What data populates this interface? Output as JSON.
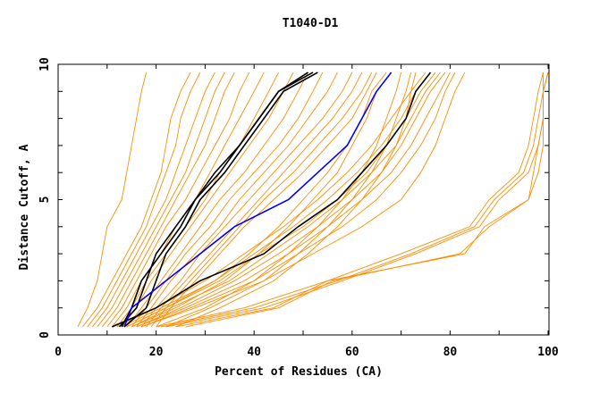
{
  "chart_data": {
    "type": "line",
    "title": "T1040-D1",
    "xlabel": "Percent of Residues (CA)",
    "ylabel": "Distance Cutoff, A",
    "xlim": [
      0,
      102
    ],
    "ylim": [
      0,
      10
    ],
    "x_ticks": [
      0,
      20,
      40,
      60,
      80,
      100
    ],
    "y_ticks": [
      0,
      5,
      10
    ],
    "grid": false,
    "legend": "none",
    "colors": {
      "orange": "#ff8c00",
      "black": "#000000",
      "blue": "#0000ff"
    },
    "y_levels": [
      0.3,
      1,
      2,
      3,
      4,
      5,
      6,
      7,
      8,
      9,
      9.7
    ],
    "series": [
      {
        "color": "orange",
        "x": [
          4,
          6,
          8,
          9,
          10,
          13,
          14,
          15,
          16,
          17,
          18
        ]
      },
      {
        "color": "orange",
        "x": [
          5,
          8,
          11,
          14,
          17,
          19,
          21,
          22,
          23,
          25,
          27
        ]
      },
      {
        "color": "orange",
        "x": [
          6,
          9,
          12,
          15,
          18,
          20,
          22,
          24,
          25,
          27,
          29
        ]
      },
      {
        "color": "orange",
        "x": [
          7,
          10,
          13,
          16,
          19,
          22,
          24,
          26,
          28,
          30,
          32
        ]
      },
      {
        "color": "orange",
        "x": [
          8,
          11,
          14,
          17,
          20,
          23,
          26,
          28,
          30,
          32,
          34
        ]
      },
      {
        "color": "orange",
        "x": [
          9,
          12,
          15,
          18,
          21,
          24,
          27,
          30,
          32,
          34,
          36
        ]
      },
      {
        "color": "orange",
        "x": [
          10,
          13,
          16,
          19,
          22,
          26,
          29,
          32,
          35,
          37,
          39
        ]
      },
      {
        "color": "orange",
        "x": [
          11,
          14,
          17,
          21,
          24,
          28,
          31,
          34,
          37,
          40,
          42
        ]
      },
      {
        "color": "orange",
        "x": [
          12,
          15,
          18,
          22,
          26,
          30,
          33,
          37,
          40,
          43,
          45
        ]
      },
      {
        "color": "orange",
        "x": [
          13,
          16,
          19,
          23,
          27,
          31,
          35,
          39,
          43,
          46,
          48
        ]
      },
      {
        "color": "orange",
        "x": [
          14,
          17,
          21,
          25,
          29,
          33,
          38,
          42,
          46,
          49,
          51
        ]
      },
      {
        "color": "orange",
        "x": [
          15,
          18,
          22,
          26,
          31,
          35,
          40,
          45,
          49,
          52,
          54
        ]
      },
      {
        "color": "orange",
        "x": [
          16,
          19,
          23,
          28,
          33,
          37,
          42,
          47,
          51,
          55,
          57
        ]
      },
      {
        "color": "orange",
        "x": [
          17,
          20,
          25,
          29,
          34,
          39,
          44,
          49,
          54,
          58,
          60
        ]
      },
      {
        "color": "orange",
        "x": [
          18,
          21,
          26,
          31,
          36,
          41,
          46,
          51,
          56,
          60,
          62
        ]
      },
      {
        "color": "orange",
        "x": [
          19,
          22,
          27,
          32,
          37,
          42,
          48,
          53,
          58,
          62,
          64
        ]
      },
      {
        "color": "orange",
        "x": [
          20,
          23,
          28,
          33,
          38,
          44,
          50,
          55,
          60,
          63,
          65
        ]
      },
      {
        "color": "orange",
        "x": [
          12,
          20,
          30,
          38,
          46,
          53,
          59,
          64,
          68,
          72,
          75
        ]
      },
      {
        "color": "orange",
        "x": [
          13,
          21,
          32,
          40,
          48,
          55,
          61,
          66,
          70,
          73,
          76
        ]
      },
      {
        "color": "orange",
        "x": [
          14,
          22,
          33,
          41,
          50,
          57,
          63,
          67,
          71,
          74,
          77
        ]
      },
      {
        "color": "orange",
        "x": [
          15,
          23,
          35,
          43,
          51,
          58,
          64,
          69,
          72,
          75,
          78
        ]
      },
      {
        "color": "orange",
        "x": [
          16,
          25,
          36,
          45,
          53,
          60,
          66,
          70,
          73,
          76,
          79
        ]
      },
      {
        "color": "orange",
        "x": [
          16,
          26,
          38,
          47,
          55,
          62,
          68,
          72,
          75,
          78,
          80
        ]
      },
      {
        "color": "orange",
        "x": [
          17,
          27,
          40,
          49,
          58,
          65,
          70,
          74,
          77,
          79,
          81
        ]
      },
      {
        "color": "orange",
        "x": [
          17,
          28,
          42,
          52,
          62,
          70,
          74,
          77,
          79,
          81,
          83
        ]
      },
      {
        "color": "orange",
        "x": [
          14,
          22,
          32,
          39,
          45,
          50,
          55,
          59,
          62,
          64,
          67
        ]
      },
      {
        "color": "orange",
        "x": [
          15,
          24,
          34,
          41,
          47,
          52,
          57,
          60,
          63,
          65,
          68
        ]
      },
      {
        "color": "orange",
        "x": [
          20,
          30,
          40,
          47,
          53,
          58,
          62,
          65,
          67,
          69,
          70
        ]
      },
      {
        "color": "orange",
        "x": [
          22,
          31,
          42,
          49,
          55,
          60,
          64,
          67,
          69,
          71,
          72
        ]
      },
      {
        "color": "orange",
        "x": [
          24,
          33,
          44,
          51,
          57,
          62,
          66,
          69,
          71,
          72,
          73
        ]
      },
      {
        "color": "orange",
        "x": [
          20,
          38,
          55,
          70,
          84,
          88,
          94,
          96,
          97,
          98,
          99
        ]
      },
      {
        "color": "orange",
        "x": [
          21,
          40,
          57,
          72,
          85,
          89,
          95,
          97,
          98,
          99,
          99
        ]
      },
      {
        "color": "orange",
        "x": [
          22,
          42,
          58,
          73,
          86,
          90,
          96,
          98,
          99,
          99,
          100
        ]
      },
      {
        "color": "orange",
        "x": [
          24,
          44,
          55,
          83,
          87,
          96,
          98,
          99,
          99,
          99,
          100
        ]
      },
      {
        "color": "orange",
        "x": [
          26,
          45,
          56,
          82,
          88,
          96,
          97,
          98,
          99,
          99,
          100
        ]
      },
      {
        "color": "black",
        "x": [
          11,
          20,
          29,
          42,
          49,
          57,
          62,
          67,
          71,
          73,
          76
        ]
      },
      {
        "color": "black",
        "x": [
          13,
          15,
          17,
          21,
          25,
          28,
          33,
          37,
          41,
          45,
          52
        ]
      },
      {
        "color": "black",
        "x": [
          13.5,
          18,
          20,
          22,
          26,
          29,
          34,
          38,
          42,
          46,
          53
        ]
      },
      {
        "color": "black",
        "x": [
          12.5,
          16,
          18,
          20,
          24,
          28,
          32,
          37,
          41,
          45,
          51
        ]
      },
      {
        "color": "blue",
        "x": [
          13.5,
          15,
          22,
          29,
          36,
          47,
          53,
          59,
          62,
          65,
          68
        ]
      }
    ]
  }
}
